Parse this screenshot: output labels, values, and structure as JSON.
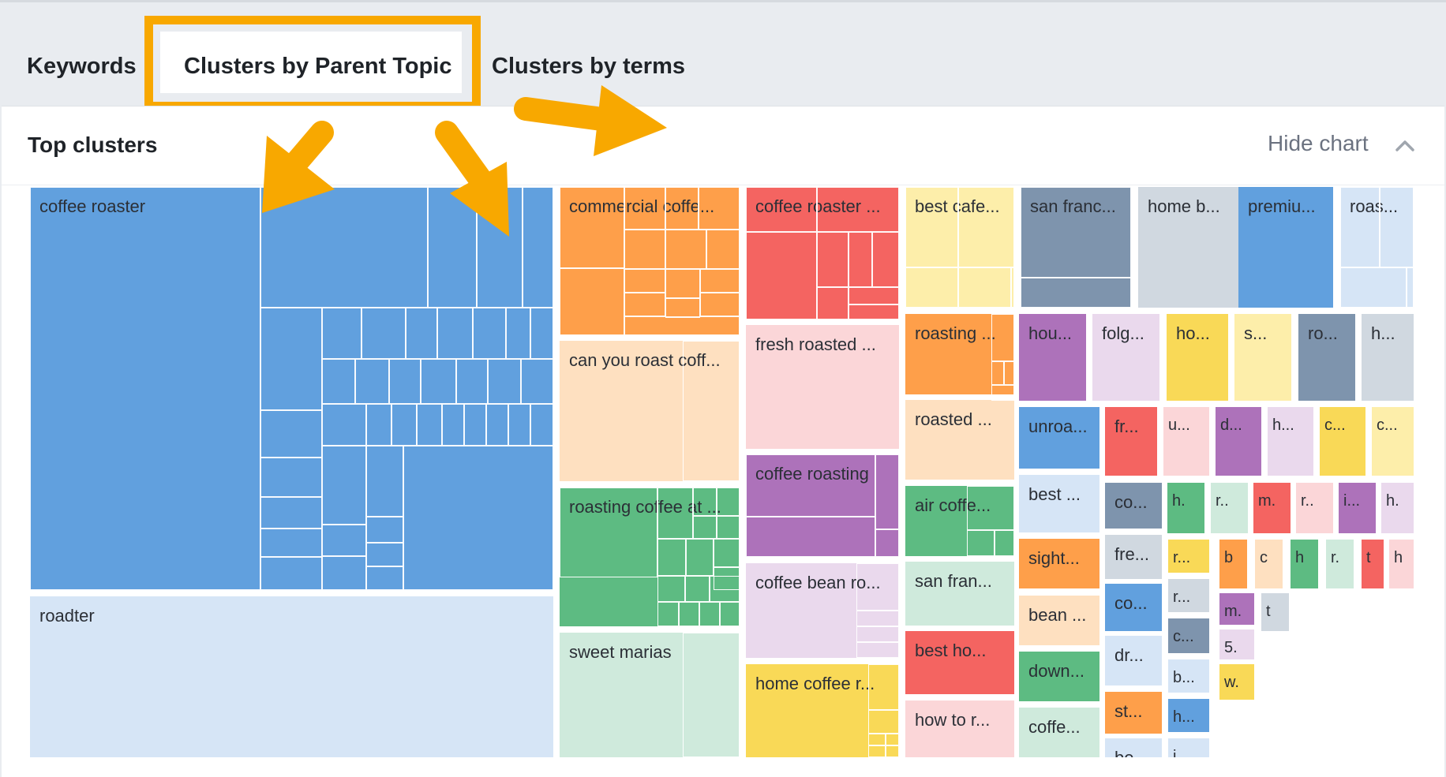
{
  "tabs": [
    {
      "label": "Keywords",
      "active": false
    },
    {
      "label": "Clusters by Parent Topic",
      "active": true
    },
    {
      "label": "Clusters by terms",
      "active": false
    }
  ],
  "panel": {
    "title": "Top clusters",
    "hide_chart_label": "Hide chart"
  },
  "colors": {
    "highlight": "#f8a800",
    "blue": "#61a0de",
    "light_blue": "#d6e5f6",
    "orange": "#fe9f4a",
    "green": "#5dbb82",
    "red": "#f46461",
    "purple": "#ad72ba",
    "yellow": "#f9d957",
    "slate": "#7e94ad"
  },
  "clusters": [
    "coffee roaster",
    "roadter",
    "commercial coffe...",
    "can you roast coff...",
    "roasting coffee at ...",
    "sweet marias",
    "coffee roaster ...",
    "fresh roasted ...",
    "coffee roasting",
    "coffee bean ro...",
    "home coffee r...",
    "best cafe...",
    "roasting ...",
    "roasted ...",
    "air coffe...",
    "san fran...",
    "best ho...",
    "how to r...",
    "san franc...",
    "home b...",
    "premiu...",
    "roas...",
    "hou...",
    "folg...",
    "ho...",
    "s...",
    "ro...",
    "h...",
    "unroa...",
    "fr...",
    "u...",
    "d...",
    "h...",
    "c...",
    "c...",
    "best ...",
    "co...",
    "h.",
    "r..",
    "m.",
    "r..",
    "i...",
    "h.",
    "sight...",
    "fre...",
    "r...",
    "b",
    "c",
    "h",
    "r.",
    "t",
    "h",
    "bean ...",
    "co...",
    "r...",
    "m.",
    "t",
    "down...",
    "dr...",
    "c...",
    "5.",
    "coffe...",
    "st...",
    "b...",
    "w.",
    "be...",
    "h...",
    "i..."
  ]
}
